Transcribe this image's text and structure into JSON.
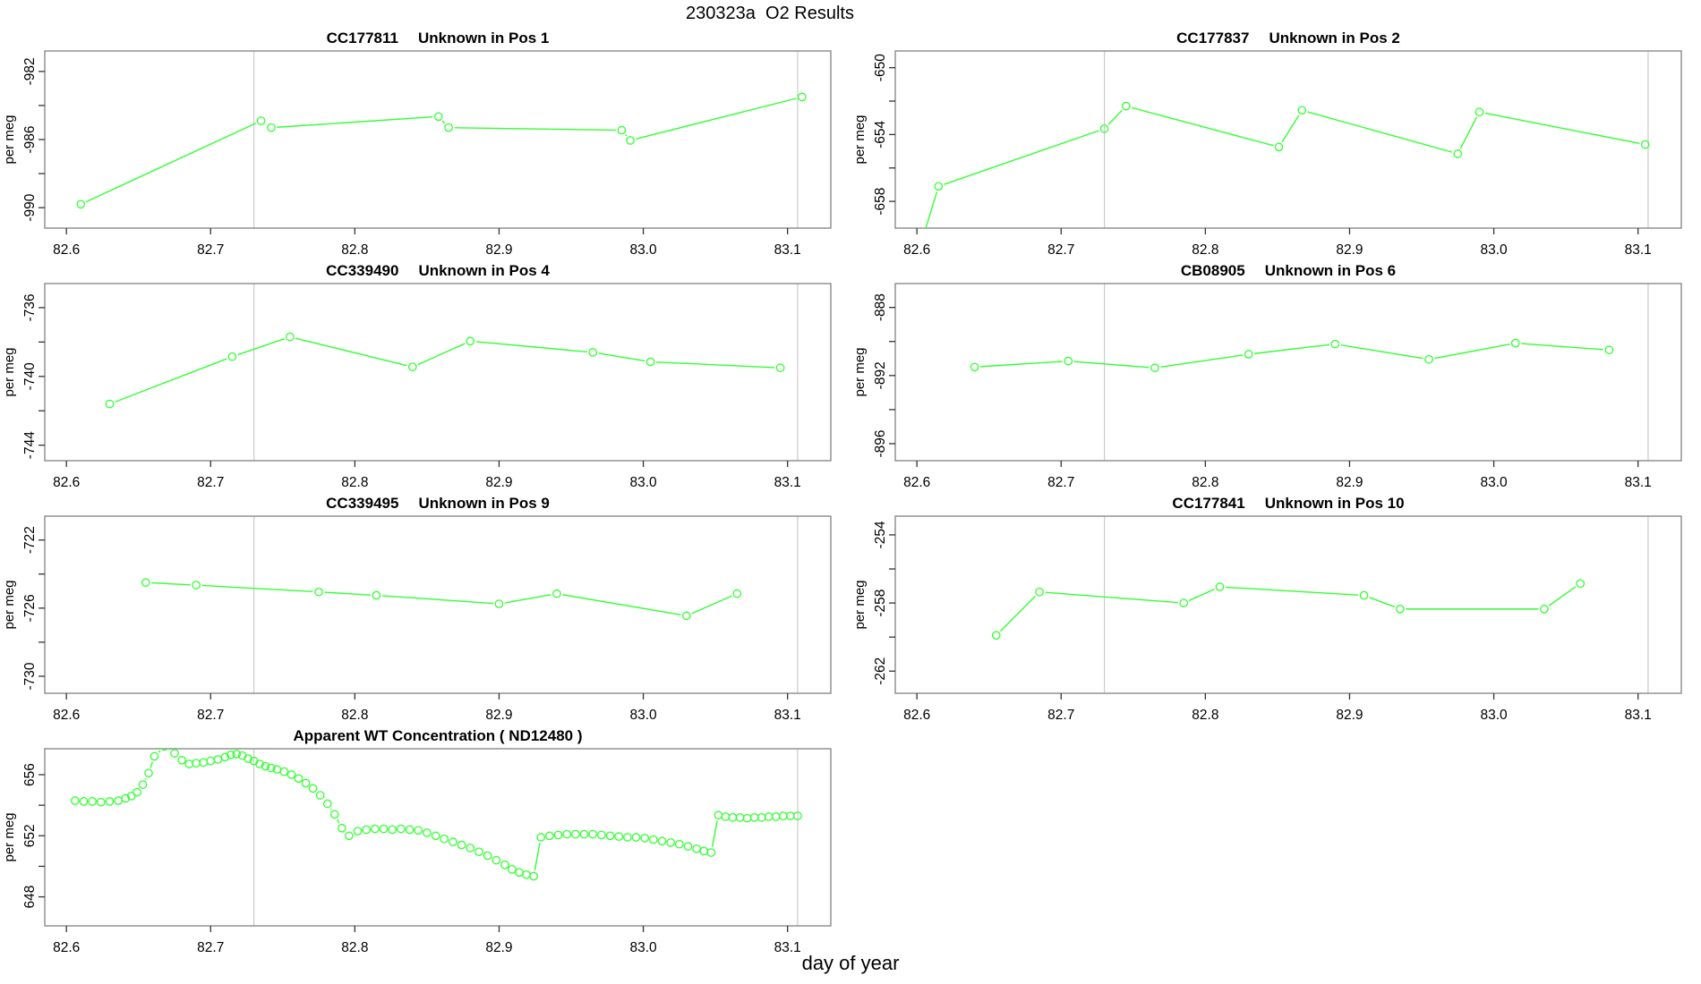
{
  "header": {
    "title": "230323a  O2 Results"
  },
  "footer": {
    "xlabel": "day of year"
  },
  "style": {
    "series_color": "#33ff33",
    "grid_color": "#cbcbcb",
    "frame_color": "#8a8a8a",
    "tick_color": "#333333",
    "text_color": "#000000"
  },
  "axes": {
    "xlim": [
      82.585,
      83.13
    ],
    "x_ticks": [
      82.6,
      82.7,
      82.8,
      82.9,
      83.0,
      83.1
    ],
    "vlines": [
      82.73,
      83.107
    ],
    "ylabel": "per meg"
  },
  "chart_data": [
    {
      "type": "line",
      "title_parts": [
        "CC177811",
        "Unknown in Pos 1"
      ],
      "ylabel": "per meg",
      "row": 0,
      "col": 0,
      "ylim": [
        -991.2,
        -980.8
      ],
      "yticks_major": [
        -982,
        -986,
        -990
      ],
      "yticks_minor": [
        -984,
        -988
      ],
      "points": [
        [
          82.61,
          -989.8
        ],
        [
          82.735,
          -984.9
        ],
        [
          82.742,
          -985.3
        ],
        [
          82.858,
          -984.65
        ],
        [
          82.865,
          -985.3
        ],
        [
          82.985,
          -985.45
        ],
        [
          82.991,
          -986.05
        ],
        [
          83.11,
          -983.5
        ]
      ]
    },
    {
      "type": "line",
      "title_parts": [
        "CC177837",
        "Unknown in Pos 2"
      ],
      "ylabel": "per meg",
      "row": 0,
      "col": 1,
      "ylim": [
        -659.6,
        -649.0
      ],
      "yticks_major": [
        -650,
        -654,
        -658
      ],
      "yticks_minor": [
        -652,
        -656
      ],
      "points": [
        [
          82.603,
          -660.5
        ],
        [
          82.615,
          -657.1
        ],
        [
          82.73,
          -653.65
        ],
        [
          82.745,
          -652.3
        ],
        [
          82.851,
          -654.75
        ],
        [
          82.867,
          -652.55
        ],
        [
          82.975,
          -655.15
        ],
        [
          82.99,
          -652.65
        ],
        [
          83.105,
          -654.6
        ]
      ]
    },
    {
      "type": "line",
      "title_parts": [
        "CC339490",
        "Unknown in Pos 4"
      ],
      "ylabel": "per meg",
      "row": 1,
      "col": 0,
      "ylim": [
        -744.9,
        -734.6
      ],
      "yticks_major": [
        -736,
        -740,
        -744
      ],
      "yticks_minor": [
        -738,
        -742
      ],
      "points": [
        [
          82.63,
          -741.6
        ],
        [
          82.715,
          -738.85
        ],
        [
          82.755,
          -737.7
        ],
        [
          82.84,
          -739.45
        ],
        [
          82.88,
          -737.95
        ],
        [
          82.965,
          -738.6
        ],
        [
          83.005,
          -739.15
        ],
        [
          83.095,
          -739.5
        ]
      ]
    },
    {
      "type": "line",
      "title_parts": [
        "CB08905",
        "Unknown in Pos 6"
      ],
      "ylabel": "per meg",
      "row": 1,
      "col": 1,
      "ylim": [
        -897.0,
        -886.6
      ],
      "yticks_major": [
        -888,
        -892,
        -896
      ],
      "yticks_minor": [
        -890,
        -894
      ],
      "points": [
        [
          82.64,
          -891.5
        ],
        [
          82.705,
          -891.15
        ],
        [
          82.765,
          -891.55
        ],
        [
          82.83,
          -890.75
        ],
        [
          82.89,
          -890.15
        ],
        [
          82.955,
          -891.05
        ],
        [
          83.015,
          -890.1
        ],
        [
          83.08,
          -890.5
        ]
      ]
    },
    {
      "type": "line",
      "title_parts": [
        "CC339495",
        "Unknown in Pos 9"
      ],
      "ylabel": "per meg",
      "row": 2,
      "col": 0,
      "ylim": [
        -731.0,
        -720.6
      ],
      "yticks_major": [
        -722,
        -726,
        -730
      ],
      "yticks_minor": [
        -724,
        -728
      ],
      "points": [
        [
          82.655,
          -724.5
        ],
        [
          82.69,
          -724.65
        ],
        [
          82.775,
          -725.05
        ],
        [
          82.815,
          -725.25
        ],
        [
          82.9,
          -725.75
        ],
        [
          82.94,
          -725.15
        ],
        [
          83.03,
          -726.45
        ],
        [
          83.065,
          -725.15
        ]
      ]
    },
    {
      "type": "line",
      "title_parts": [
        "CC177841",
        "Unknown in Pos 10"
      ],
      "ylabel": "per meg",
      "row": 2,
      "col": 1,
      "ylim": [
        -263.3,
        -252.9
      ],
      "yticks_major": [
        -254,
        -258,
        -262
      ],
      "yticks_minor": [
        -256,
        -260
      ],
      "points": [
        [
          82.655,
          -259.9
        ],
        [
          82.685,
          -257.35
        ],
        [
          82.785,
          -258.0
        ],
        [
          82.81,
          -257.05
        ],
        [
          82.91,
          -257.55
        ],
        [
          82.935,
          -258.35
        ],
        [
          83.035,
          -258.35
        ],
        [
          83.06,
          -256.85
        ]
      ]
    },
    {
      "type": "scatter",
      "title_parts": [
        "Apparent WT Concentration ( ND12480 )"
      ],
      "ylabel": "per meg",
      "row": 3,
      "col": 0,
      "ylim": [
        646.1,
        657.7
      ],
      "yticks_major": [
        648,
        652,
        656
      ],
      "yticks_minor": [
        650,
        654
      ],
      "points": [
        [
          82.606,
          654.3
        ],
        [
          82.612,
          654.25
        ],
        [
          82.618,
          654.25
        ],
        [
          82.624,
          654.2
        ],
        [
          82.63,
          654.25
        ],
        [
          82.636,
          654.3
        ],
        [
          82.641,
          654.45
        ],
        [
          82.645,
          654.6
        ],
        [
          82.649,
          654.85
        ],
        [
          82.653,
          655.35
        ],
        [
          82.657,
          656.1
        ],
        [
          82.661,
          657.2
        ],
        [
          82.668,
          657.85
        ],
        [
          82.675,
          657.4
        ],
        [
          82.68,
          656.95
        ],
        [
          82.685,
          656.7
        ],
        [
          82.69,
          656.75
        ],
        [
          82.695,
          656.8
        ],
        [
          82.7,
          656.9
        ],
        [
          82.705,
          657.0
        ],
        [
          82.71,
          657.15
        ],
        [
          82.714,
          657.3
        ],
        [
          82.718,
          657.35
        ],
        [
          82.722,
          657.25
        ],
        [
          82.726,
          657.05
        ],
        [
          82.73,
          656.9
        ],
        [
          82.734,
          656.7
        ],
        [
          82.738,
          656.55
        ],
        [
          82.742,
          656.45
        ],
        [
          82.746,
          656.35
        ],
        [
          82.751,
          656.2
        ],
        [
          82.756,
          656.0
        ],
        [
          82.761,
          655.75
        ],
        [
          82.766,
          655.45
        ],
        [
          82.771,
          655.1
        ],
        [
          82.776,
          654.65
        ],
        [
          82.781,
          654.1
        ],
        [
          82.786,
          653.4
        ],
        [
          82.791,
          652.5
        ],
        [
          82.796,
          652.0
        ],
        [
          82.802,
          652.3
        ],
        [
          82.808,
          652.4
        ],
        [
          82.814,
          652.45
        ],
        [
          82.82,
          652.45
        ],
        [
          82.826,
          652.4
        ],
        [
          82.832,
          652.45
        ],
        [
          82.838,
          652.4
        ],
        [
          82.844,
          652.35
        ],
        [
          82.85,
          652.2
        ],
        [
          82.856,
          652.0
        ],
        [
          82.862,
          651.8
        ],
        [
          82.868,
          651.6
        ],
        [
          82.874,
          651.4
        ],
        [
          82.88,
          651.2
        ],
        [
          82.886,
          650.95
        ],
        [
          82.892,
          650.7
        ],
        [
          82.898,
          650.4
        ],
        [
          82.904,
          650.1
        ],
        [
          82.909,
          649.8
        ],
        [
          82.914,
          649.6
        ],
        [
          82.919,
          649.45
        ],
        [
          82.924,
          649.35
        ],
        [
          82.929,
          651.9
        ],
        [
          82.935,
          652.0
        ],
        [
          82.941,
          652.05
        ],
        [
          82.947,
          652.1
        ],
        [
          82.953,
          652.1
        ],
        [
          82.959,
          652.1
        ],
        [
          82.965,
          652.1
        ],
        [
          82.971,
          652.05
        ],
        [
          82.977,
          652.0
        ],
        [
          82.983,
          651.95
        ],
        [
          82.989,
          651.9
        ],
        [
          82.995,
          651.9
        ],
        [
          83.001,
          651.85
        ],
        [
          83.007,
          651.75
        ],
        [
          83.013,
          651.65
        ],
        [
          83.019,
          651.55
        ],
        [
          83.025,
          651.45
        ],
        [
          83.031,
          651.3
        ],
        [
          83.037,
          651.15
        ],
        [
          83.042,
          651.0
        ],
        [
          83.047,
          650.9
        ],
        [
          83.052,
          653.35
        ],
        [
          83.057,
          653.25
        ],
        [
          83.062,
          653.2
        ],
        [
          83.067,
          653.2
        ],
        [
          83.072,
          653.15
        ],
        [
          83.077,
          653.2
        ],
        [
          83.082,
          653.2
        ],
        [
          83.087,
          653.25
        ],
        [
          83.092,
          653.25
        ],
        [
          83.097,
          653.3
        ],
        [
          83.102,
          653.3
        ],
        [
          83.107,
          653.3
        ]
      ]
    }
  ]
}
